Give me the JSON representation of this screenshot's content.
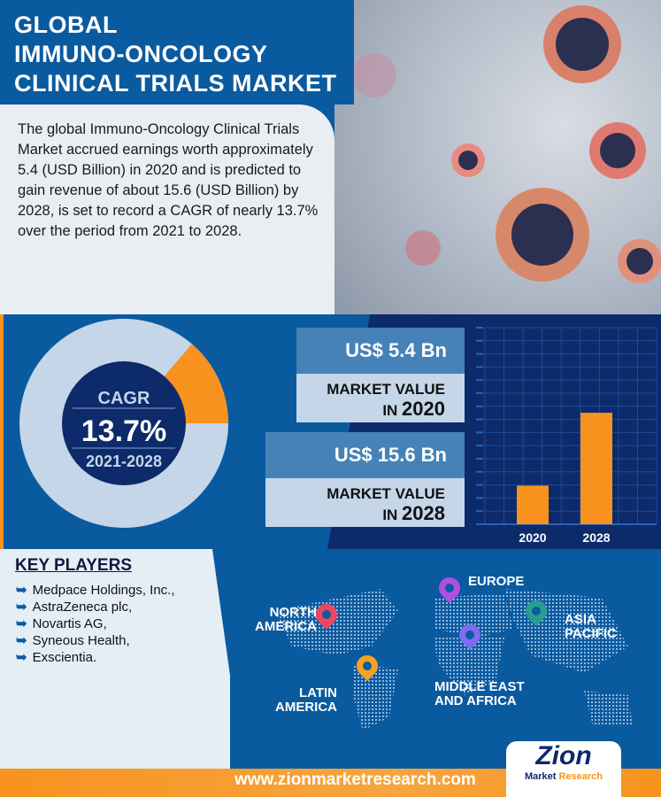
{
  "header": {
    "title_lines": [
      "GLOBAL",
      "IMMUNO-ONCOLOGY",
      "CLINICAL TRIALS MARKET"
    ]
  },
  "intro": "The global Immuno-Oncology Clinical Trials Market accrued earnings worth approximately 5.4 (USD Billion) in 2020 and is predicted to gain revenue of about 15.6 (USD Billion) by 2028, is set to record a CAGR of nearly 13.7% over the period from 2021 to 2028.",
  "cagr": {
    "label": "CAGR",
    "value": "13.7%",
    "period": "2021-2028",
    "fraction": 0.137
  },
  "values": [
    {
      "amount": "US$ 5.4 Bn",
      "label": "MARKET VALUE",
      "prefix": "IN",
      "year": "2020"
    },
    {
      "amount": "US$ 15.6 Bn",
      "label": "MARKET VALUE",
      "prefix": "IN",
      "year": "2028"
    }
  ],
  "chart_data": {
    "type": "bar",
    "categories": [
      "2020",
      "2028"
    ],
    "values": [
      5.4,
      15.6
    ],
    "ylim": [
      0,
      27.5
    ],
    "unit": "USD Billion",
    "grid": true
  },
  "key_players": {
    "title": "KEY PLAYERS",
    "items": [
      "Medpace Holdings, Inc.,",
      "AstraZeneca plc,",
      "Novartis AG,",
      "Syneous Health,",
      "Exscientia."
    ]
  },
  "regions": {
    "north_america": [
      "NORTH",
      "AMERICA"
    ],
    "europe": [
      "EUROPE"
    ],
    "asia_pacific": [
      "ASIA",
      "PACIFIC"
    ],
    "latin_america": [
      "LATIN",
      "AMERICA"
    ],
    "mea": [
      "MIDDLE EAST",
      "AND AFRICA"
    ]
  },
  "colors": {
    "pin_na": "#f0455f",
    "pin_eu": "#b04fe0",
    "pin_ap": "#2a9c8f",
    "pin_la": "#f7a21e",
    "pin_mea": "#7b6cf0",
    "accent": "#f7931e"
  },
  "footer": {
    "url": "www.zionmarketresearch.com",
    "logo_main": "Zion",
    "logo_sub_a": "Market",
    "logo_sub_b": "Research"
  }
}
